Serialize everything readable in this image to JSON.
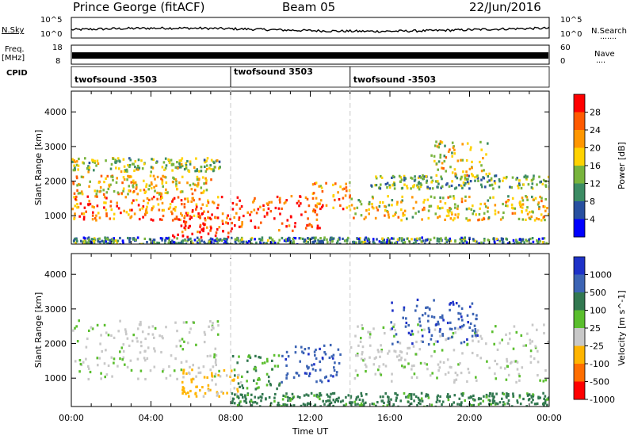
{
  "header": {
    "station": "Prince George (fitACF)",
    "beam": "Beam 05",
    "date": "22/Jun/2016"
  },
  "left_labels": {
    "nsky": "N.Sky",
    "freq": "Freq.",
    "freq_unit": "[MHz]",
    "cpid": "CPID"
  },
  "right_labels": {
    "nsearch": "N.Search",
    "nsearch_dots": "·······",
    "nave": "Nave",
    "nave_dots": "····"
  },
  "noise_axis": {
    "left_ticks": [
      "10^5",
      "10^0"
    ],
    "right_ticks": [
      "10^5",
      "10^0"
    ]
  },
  "freq_axis": {
    "left_ticks": [
      "18",
      "8"
    ],
    "right_ticks": [
      "60",
      "0"
    ]
  },
  "cpid_segments": [
    {
      "label": "twofsound -3503",
      "start_hour": 0
    },
    {
      "label": "twofsound 3503",
      "start_hour": 8
    },
    {
      "label": "twofsound -3503",
      "start_hour": 14
    }
  ],
  "chart_data": [
    {
      "type": "heatmap",
      "panel": "power",
      "ylabel": "Slant Range [km]",
      "xlabel": "Time UT",
      "xlim": [
        0,
        24
      ],
      "ylim": [
        180,
        4600
      ],
      "yticks": [
        "1000",
        "2000",
        "3000",
        "4000"
      ],
      "xtick_labels": [
        "00:00",
        "04:00",
        "08:00",
        "12:00",
        "16:00",
        "20:00",
        "00:00"
      ],
      "colorbar": {
        "label": "Power [dB]",
        "tick_labels": [
          "28",
          "24",
          "20",
          "16",
          "12",
          "8",
          "4"
        ],
        "colors": [
          "#ff0000",
          "#ff5a00",
          "#ff9600",
          "#ffd200",
          "#78b43c",
          "#3c8c64",
          "#2850a0",
          "#0000ff"
        ]
      },
      "bands": [
        {
          "t0": 0.0,
          "t1": 7.6,
          "r0": 900,
          "r1": 1600,
          "level": 0.75
        },
        {
          "t0": 0.0,
          "t1": 7.0,
          "r0": 1650,
          "r1": 2200,
          "level": 0.6
        },
        {
          "t0": 0.0,
          "t1": 7.5,
          "r0": 2300,
          "r1": 2700,
          "level": 0.45
        },
        {
          "t0": 5.0,
          "t1": 8.0,
          "r0": 400,
          "r1": 1100,
          "level": 0.9
        },
        {
          "t0": 8.0,
          "t1": 12.5,
          "r0": 600,
          "r1": 1600,
          "level": 0.85
        },
        {
          "t0": 12.0,
          "t1": 14.0,
          "r0": 1200,
          "r1": 2000,
          "level": 0.7
        },
        {
          "t0": 14.0,
          "t1": 24.0,
          "r0": 900,
          "r1": 1600,
          "level": 0.55
        },
        {
          "t0": 15.0,
          "t1": 24.0,
          "r0": 1800,
          "r1": 2200,
          "level": 0.4
        },
        {
          "t0": 18.0,
          "t1": 21.0,
          "r0": 2200,
          "r1": 3200,
          "level": 0.55
        },
        {
          "t0": 0.0,
          "t1": 24.0,
          "r0": 200,
          "r1": 400,
          "level": 0.3
        }
      ]
    },
    {
      "type": "heatmap",
      "panel": "velocity",
      "ylabel": "Slant Range [km]",
      "xlabel": "Time UT",
      "xlim": [
        0,
        24
      ],
      "ylim": [
        180,
        4600
      ],
      "yticks": [
        "1000",
        "2000",
        "3000",
        "4000"
      ],
      "xtick_labels": [
        "00:00",
        "04:00",
        "08:00",
        "12:00",
        "16:00",
        "20:00",
        "00:00"
      ],
      "colorbar": {
        "label": "Velocity [m s^-1]",
        "tick_labels": [
          "1000",
          "500",
          "100",
          "25",
          "-25",
          "-100",
          "-500",
          "-1000"
        ],
        "colors": [
          "#1e32c8",
          "#3c64b4",
          "#327850",
          "#5abe2d",
          "#c8c8c8",
          "#ffb400",
          "#ff6e00",
          "#ff0000"
        ]
      },
      "bands": [
        {
          "t0": 0.0,
          "t1": 7.5,
          "r0": 1000,
          "r1": 2700,
          "level": -0.05
        },
        {
          "t0": 5.5,
          "t1": 8.5,
          "r0": 500,
          "r1": 1300,
          "level": -0.35
        },
        {
          "t0": 8.0,
          "t1": 10.5,
          "r0": 700,
          "r1": 1700,
          "level": 0.25
        },
        {
          "t0": 10.5,
          "t1": 13.5,
          "r0": 900,
          "r1": 2000,
          "level": 0.65
        },
        {
          "t0": 14.0,
          "t1": 24.0,
          "r0": 900,
          "r1": 2600,
          "level": -0.05
        },
        {
          "t0": 16.0,
          "t1": 20.5,
          "r0": 2000,
          "r1": 3300,
          "level": 0.7
        },
        {
          "t0": 8.0,
          "t1": 24.0,
          "r0": 200,
          "r1": 600,
          "level": 0.35
        }
      ]
    }
  ]
}
